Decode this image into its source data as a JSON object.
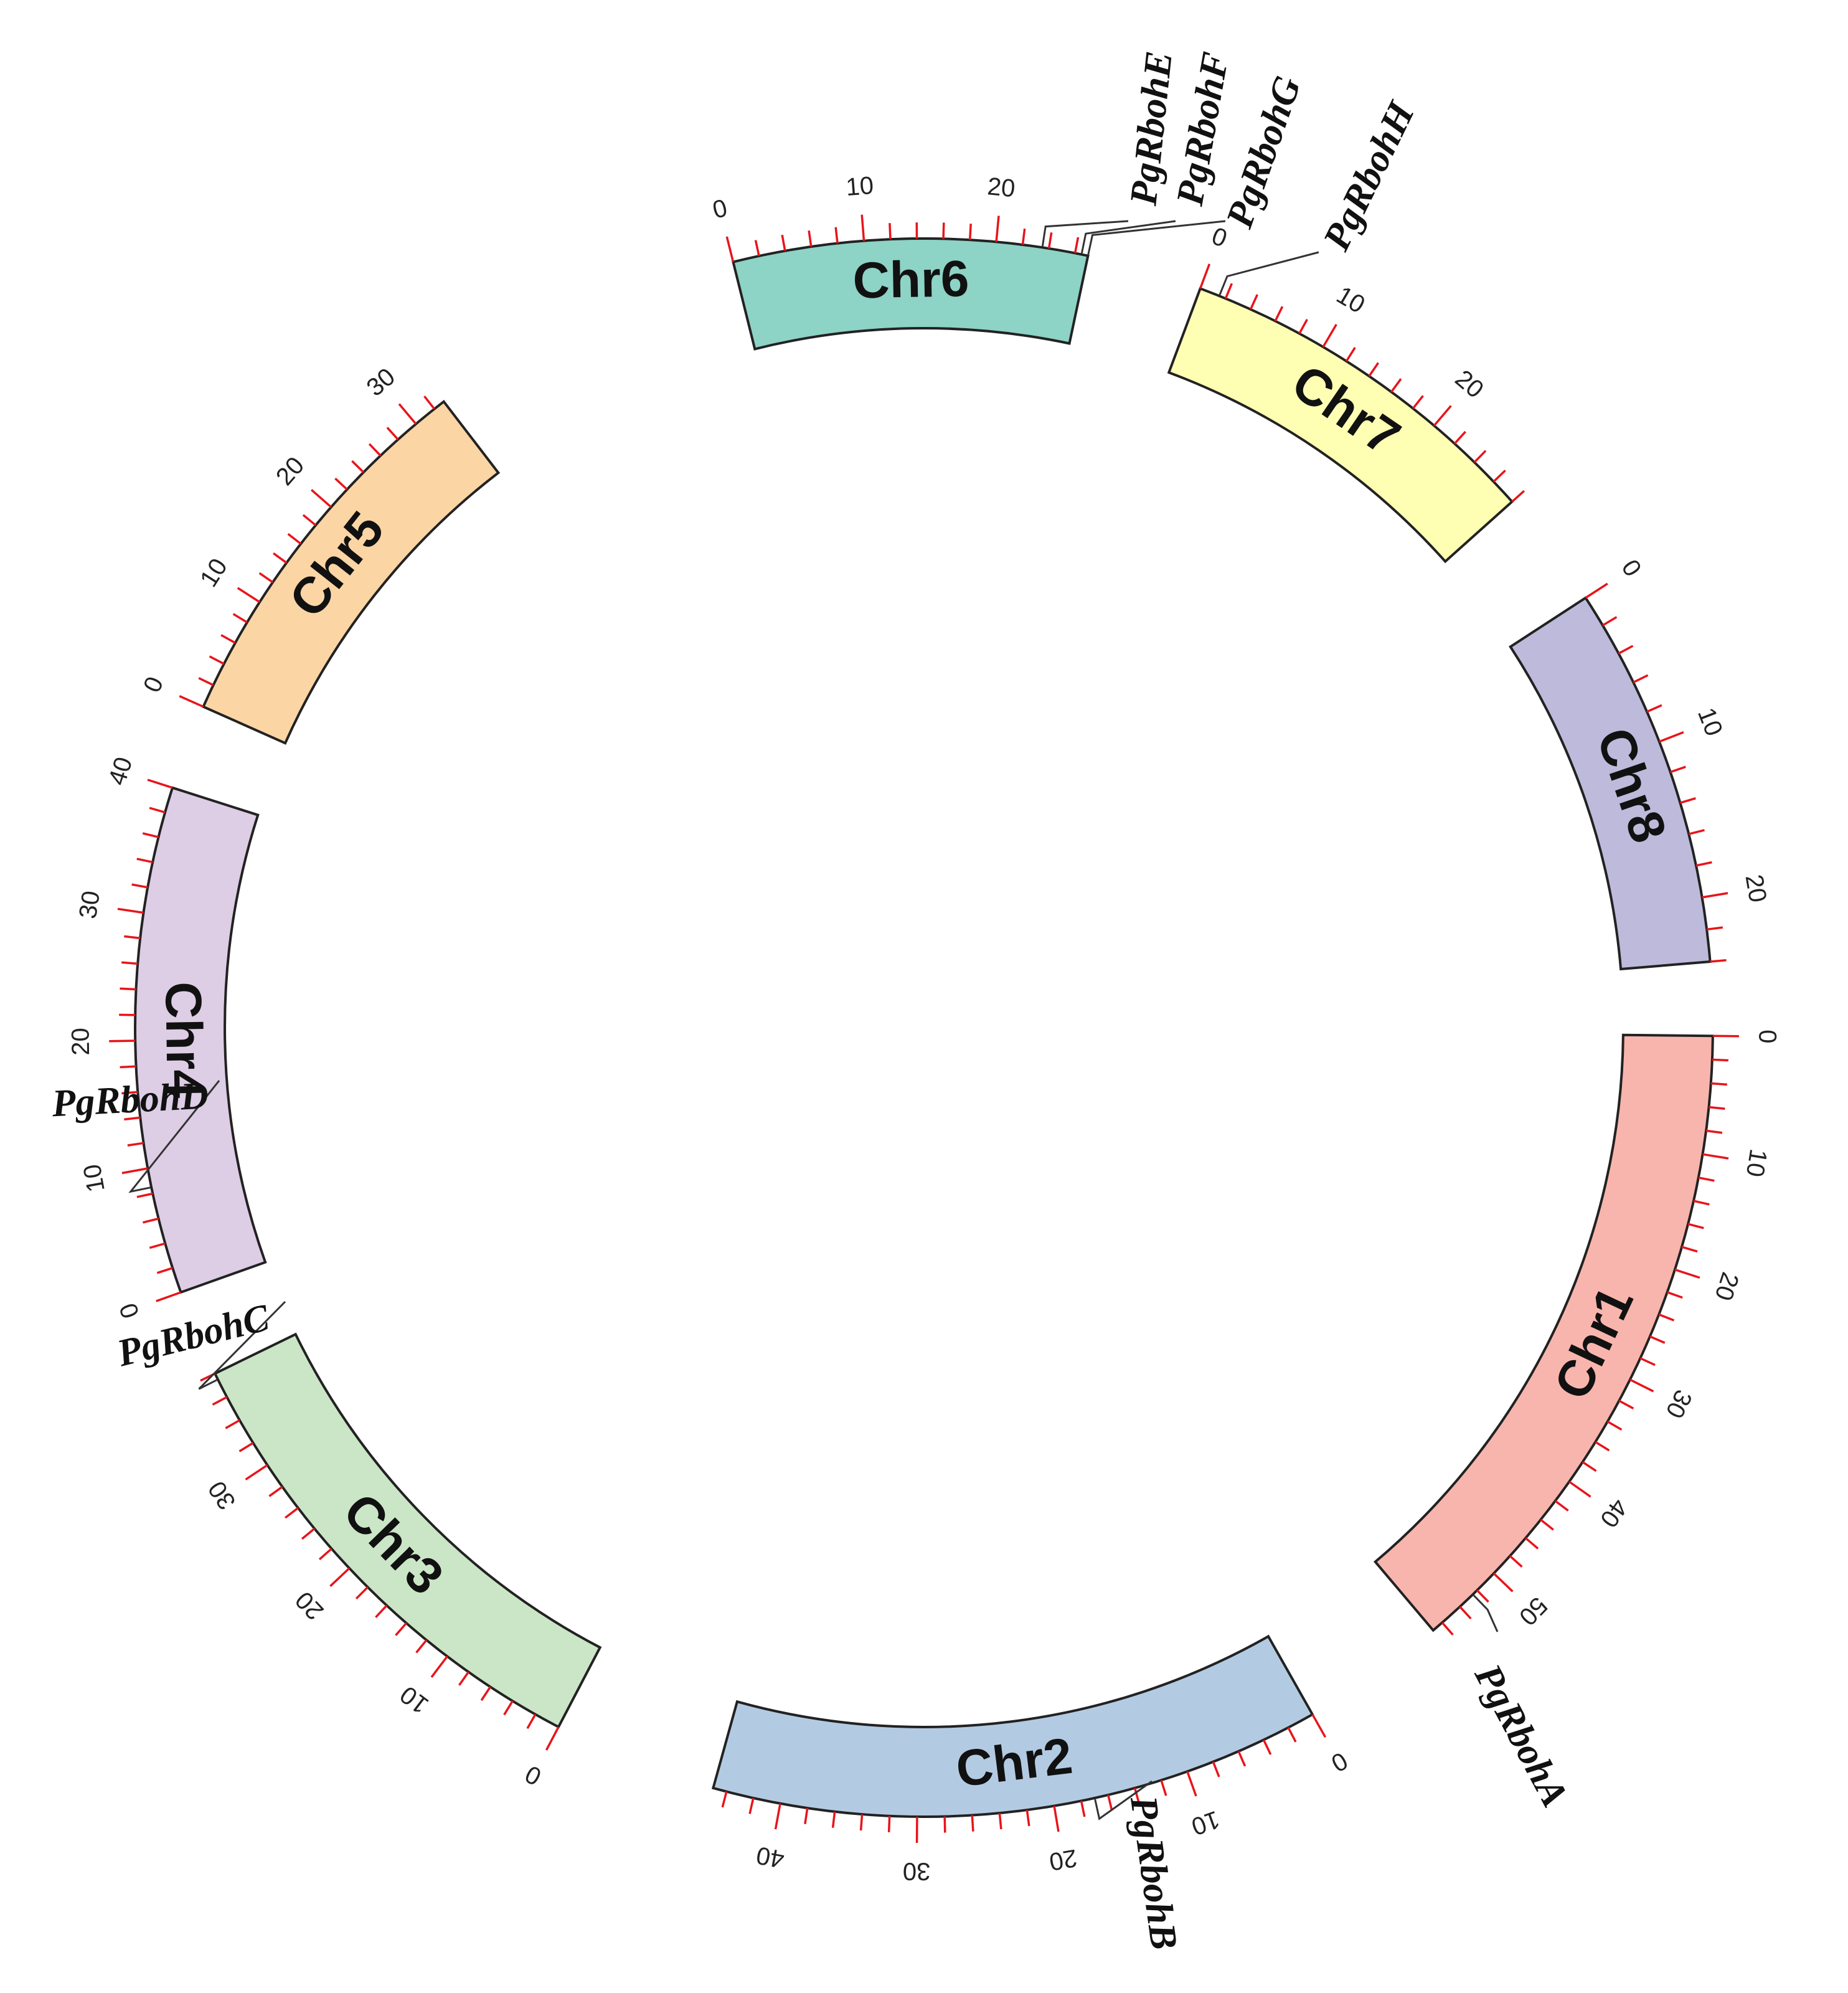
{
  "diagram": {
    "type": "circos-chromosome-map",
    "tick_color": "#e8141a",
    "outline_color": "#222222",
    "chromosomes": [
      {
        "id": "chr1",
        "label": "Chr1",
        "length": 57,
        "color": "#f8b5ad",
        "tick_labels": [
          0,
          10,
          20,
          30,
          40,
          50
        ]
      },
      {
        "id": "chr2",
        "label": "Chr2",
        "length": 45,
        "color": "#b3cbe2",
        "tick_labels": [
          0,
          10,
          20,
          30,
          40
        ]
      },
      {
        "id": "chr3",
        "label": "Chr3",
        "length": 38,
        "color": "#cbe6c6",
        "tick_labels": [
          0,
          10,
          20,
          30
        ]
      },
      {
        "id": "chr4",
        "label": "Chr4",
        "length": 40,
        "color": "#ddcde5",
        "tick_labels": [
          0,
          10,
          20,
          30,
          40
        ]
      },
      {
        "id": "chr5",
        "label": "Chr5",
        "length": 33,
        "color": "#fcd5a5",
        "tick_labels": [
          0,
          10,
          20,
          30
        ]
      },
      {
        "id": "chr6",
        "label": "Chr6",
        "length": 27,
        "color": "#8dd3c6",
        "tick_labels": [
          0,
          10,
          20
        ]
      },
      {
        "id": "chr7",
        "label": "Chr7",
        "length": 28,
        "color": "#ffffb3",
        "tick_labels": [
          0,
          10,
          20
        ]
      },
      {
        "id": "chr8",
        "label": "Chr8",
        "length": 24,
        "color": "#bdbadb",
        "tick_labels": [
          0,
          10,
          20
        ]
      }
    ],
    "genes": [
      {
        "id": "pgrboha",
        "label": "PgRbohA",
        "chromosome": "chr1",
        "position": 52.5
      },
      {
        "id": "pgrbohb",
        "label": "PgRbohB",
        "chromosome": "chr2",
        "position": 17
      },
      {
        "id": "pgrbohc",
        "label": "PgRbohC",
        "chromosome": "chr3",
        "position": 37.5
      },
      {
        "id": "pgrbohd",
        "label": "PgRbohD",
        "chromosome": "chr4",
        "position": 8.5
      },
      {
        "id": "pgrbohe",
        "label": "PgRbohE",
        "chromosome": "chr6",
        "position": 23.5
      },
      {
        "id": "pgrbohf",
        "label": "PgRbohF",
        "chromosome": "chr6",
        "position": 26.5
      },
      {
        "id": "pgrbohg",
        "label": "PgRbohG",
        "chromosome": "chr6",
        "position": 27
      },
      {
        "id": "pgrbohh",
        "label": "PgRbohH",
        "chromosome": "chr7",
        "position": 1.5
      }
    ]
  }
}
